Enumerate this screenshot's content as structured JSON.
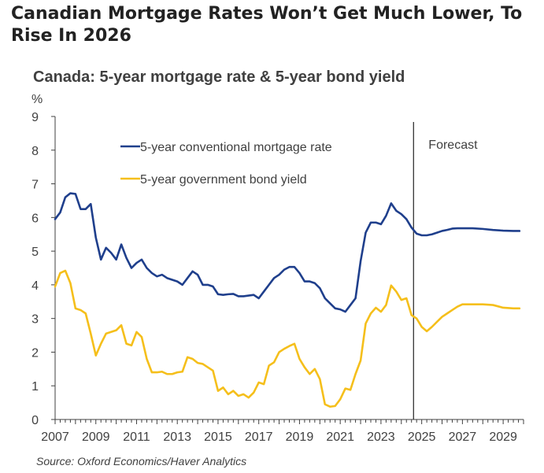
{
  "headline": "Canadian Mortgage Rates Won’t Get Much Lower, To Rise In 2026",
  "source": "Source: Oxford Economics/Haver Analytics",
  "colors": {
    "mortgage": "#1f3f8c",
    "bond": "#f5bf1b",
    "axis": "#404040"
  },
  "chart_data": {
    "type": "line",
    "title": "Canada: 5-year mortgage rate & 5-year bond yield",
    "ylabel": "%",
    "xlabel": "",
    "xlim": [
      2007,
      2030
    ],
    "ylim": [
      0,
      9
    ],
    "yticks": [
      "0",
      "1",
      "2",
      "3",
      "4",
      "5",
      "6",
      "7",
      "8",
      "9"
    ],
    "xticks": [
      {
        "value": 2007,
        "label": "2007"
      },
      {
        "value": 2009,
        "label": "2009"
      },
      {
        "value": 2011,
        "label": "2011"
      },
      {
        "value": 2013,
        "label": "2013"
      },
      {
        "value": 2015,
        "label": "2015"
      },
      {
        "value": 2017,
        "label": "2017"
      },
      {
        "value": 2019,
        "label": "2019"
      },
      {
        "value": 2021,
        "label": "2021"
      },
      {
        "value": 2023,
        "label": "2023"
      },
      {
        "value": 2025,
        "label": "2025"
      },
      {
        "value": 2027,
        "label": "2027"
      },
      {
        "value": 2029,
        "label": "2029"
      }
    ],
    "forecast_start": 2024.6,
    "forecast_label": "Forecast",
    "grid": false,
    "legend": "top-left",
    "series": [
      {
        "name": "5-year conventional mortgage rate",
        "points": [
          [
            2007.0,
            5.95
          ],
          [
            2007.25,
            6.15
          ],
          [
            2007.5,
            6.6
          ],
          [
            2007.75,
            6.72
          ],
          [
            2008.0,
            6.7
          ],
          [
            2008.25,
            6.25
          ],
          [
            2008.5,
            6.25
          ],
          [
            2008.75,
            6.4
          ],
          [
            2009.0,
            5.4
          ],
          [
            2009.25,
            4.75
          ],
          [
            2009.5,
            5.1
          ],
          [
            2009.75,
            4.95
          ],
          [
            2010.0,
            4.75
          ],
          [
            2010.25,
            5.2
          ],
          [
            2010.5,
            4.8
          ],
          [
            2010.75,
            4.5
          ],
          [
            2011.0,
            4.65
          ],
          [
            2011.25,
            4.75
          ],
          [
            2011.5,
            4.5
          ],
          [
            2011.75,
            4.35
          ],
          [
            2012.0,
            4.25
          ],
          [
            2012.25,
            4.3
          ],
          [
            2012.5,
            4.2
          ],
          [
            2012.75,
            4.15
          ],
          [
            2013.0,
            4.1
          ],
          [
            2013.25,
            4.0
          ],
          [
            2013.5,
            4.2
          ],
          [
            2013.75,
            4.4
          ],
          [
            2014.0,
            4.3
          ],
          [
            2014.25,
            4.0
          ],
          [
            2014.5,
            4.0
          ],
          [
            2014.75,
            3.95
          ],
          [
            2015.0,
            3.72
          ],
          [
            2015.25,
            3.7
          ],
          [
            2015.5,
            3.72
          ],
          [
            2015.75,
            3.73
          ],
          [
            2016.0,
            3.66
          ],
          [
            2016.25,
            3.66
          ],
          [
            2016.5,
            3.68
          ],
          [
            2016.75,
            3.7
          ],
          [
            2017.0,
            3.6
          ],
          [
            2017.25,
            3.8
          ],
          [
            2017.5,
            4.0
          ],
          [
            2017.75,
            4.2
          ],
          [
            2018.0,
            4.3
          ],
          [
            2018.25,
            4.45
          ],
          [
            2018.5,
            4.53
          ],
          [
            2018.75,
            4.53
          ],
          [
            2019.0,
            4.35
          ],
          [
            2019.25,
            4.1
          ],
          [
            2019.5,
            4.1
          ],
          [
            2019.75,
            4.05
          ],
          [
            2020.0,
            3.9
          ],
          [
            2020.25,
            3.6
          ],
          [
            2020.5,
            3.45
          ],
          [
            2020.75,
            3.3
          ],
          [
            2021.0,
            3.27
          ],
          [
            2021.25,
            3.2
          ],
          [
            2021.5,
            3.4
          ],
          [
            2021.75,
            3.6
          ],
          [
            2022.0,
            4.7
          ],
          [
            2022.25,
            5.55
          ],
          [
            2022.5,
            5.85
          ],
          [
            2022.75,
            5.85
          ],
          [
            2023.0,
            5.8
          ],
          [
            2023.25,
            6.05
          ],
          [
            2023.5,
            6.42
          ],
          [
            2023.75,
            6.2
          ],
          [
            2024.0,
            6.1
          ],
          [
            2024.25,
            5.95
          ],
          [
            2024.5,
            5.7
          ],
          [
            2024.75,
            5.52
          ],
          [
            2025.0,
            5.47
          ],
          [
            2025.25,
            5.47
          ],
          [
            2025.5,
            5.5
          ],
          [
            2025.75,
            5.55
          ],
          [
            2026.0,
            5.6
          ],
          [
            2026.25,
            5.63
          ],
          [
            2026.5,
            5.67
          ],
          [
            2026.75,
            5.68
          ],
          [
            2027.0,
            5.68
          ],
          [
            2027.5,
            5.68
          ],
          [
            2028.0,
            5.66
          ],
          [
            2028.5,
            5.63
          ],
          [
            2029.0,
            5.61
          ],
          [
            2029.5,
            5.6
          ],
          [
            2029.8,
            5.6
          ]
        ]
      },
      {
        "name": "5-year government bond yield",
        "points": [
          [
            2007.0,
            3.95
          ],
          [
            2007.25,
            4.35
          ],
          [
            2007.5,
            4.42
          ],
          [
            2007.75,
            4.05
          ],
          [
            2008.0,
            3.3
          ],
          [
            2008.25,
            3.25
          ],
          [
            2008.5,
            3.15
          ],
          [
            2008.75,
            2.55
          ],
          [
            2009.0,
            1.9
          ],
          [
            2009.25,
            2.25
          ],
          [
            2009.5,
            2.55
          ],
          [
            2009.75,
            2.6
          ],
          [
            2010.0,
            2.65
          ],
          [
            2010.25,
            2.8
          ],
          [
            2010.5,
            2.25
          ],
          [
            2010.75,
            2.2
          ],
          [
            2011.0,
            2.6
          ],
          [
            2011.25,
            2.45
          ],
          [
            2011.5,
            1.8
          ],
          [
            2011.75,
            1.4
          ],
          [
            2012.0,
            1.4
          ],
          [
            2012.25,
            1.42
          ],
          [
            2012.5,
            1.35
          ],
          [
            2012.75,
            1.35
          ],
          [
            2013.0,
            1.4
          ],
          [
            2013.25,
            1.42
          ],
          [
            2013.5,
            1.85
          ],
          [
            2013.75,
            1.8
          ],
          [
            2014.0,
            1.68
          ],
          [
            2014.25,
            1.65
          ],
          [
            2014.5,
            1.55
          ],
          [
            2014.75,
            1.45
          ],
          [
            2015.0,
            0.85
          ],
          [
            2015.25,
            0.95
          ],
          [
            2015.5,
            0.75
          ],
          [
            2015.75,
            0.85
          ],
          [
            2016.0,
            0.7
          ],
          [
            2016.25,
            0.75
          ],
          [
            2016.5,
            0.65
          ],
          [
            2016.75,
            0.8
          ],
          [
            2017.0,
            1.1
          ],
          [
            2017.25,
            1.05
          ],
          [
            2017.5,
            1.6
          ],
          [
            2017.75,
            1.7
          ],
          [
            2018.0,
            2.0
          ],
          [
            2018.25,
            2.1
          ],
          [
            2018.5,
            2.18
          ],
          [
            2018.75,
            2.25
          ],
          [
            2019.0,
            1.8
          ],
          [
            2019.25,
            1.55
          ],
          [
            2019.5,
            1.35
          ],
          [
            2019.75,
            1.5
          ],
          [
            2020.0,
            1.2
          ],
          [
            2020.25,
            0.45
          ],
          [
            2020.5,
            0.38
          ],
          [
            2020.75,
            0.4
          ],
          [
            2021.0,
            0.6
          ],
          [
            2021.25,
            0.92
          ],
          [
            2021.5,
            0.88
          ],
          [
            2021.75,
            1.35
          ],
          [
            2022.0,
            1.75
          ],
          [
            2022.25,
            2.85
          ],
          [
            2022.5,
            3.15
          ],
          [
            2022.75,
            3.32
          ],
          [
            2023.0,
            3.2
          ],
          [
            2023.25,
            3.4
          ],
          [
            2023.5,
            3.98
          ],
          [
            2023.75,
            3.8
          ],
          [
            2024.0,
            3.55
          ],
          [
            2024.25,
            3.6
          ],
          [
            2024.5,
            3.1
          ],
          [
            2024.75,
            3.0
          ],
          [
            2025.0,
            2.75
          ],
          [
            2025.25,
            2.62
          ],
          [
            2025.5,
            2.75
          ],
          [
            2025.75,
            2.9
          ],
          [
            2026.0,
            3.05
          ],
          [
            2026.25,
            3.15
          ],
          [
            2026.5,
            3.25
          ],
          [
            2026.75,
            3.35
          ],
          [
            2027.0,
            3.42
          ],
          [
            2027.5,
            3.42
          ],
          [
            2028.0,
            3.42
          ],
          [
            2028.5,
            3.4
          ],
          [
            2029.0,
            3.32
          ],
          [
            2029.5,
            3.3
          ],
          [
            2029.8,
            3.3
          ]
        ]
      }
    ]
  }
}
